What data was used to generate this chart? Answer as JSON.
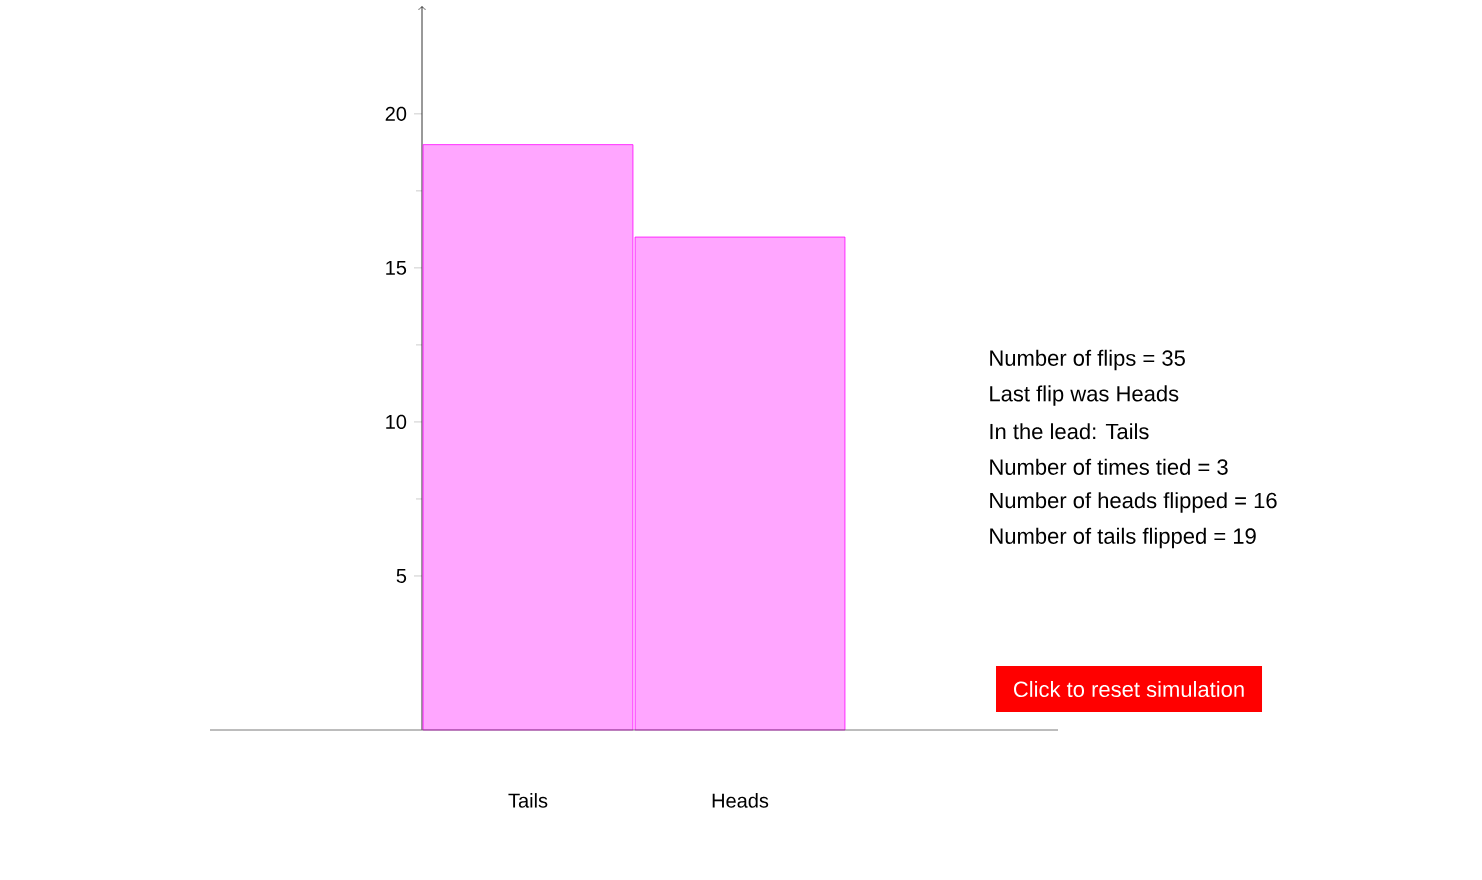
{
  "chart_data": {
    "type": "bar",
    "categories": [
      "Tails",
      "Heads"
    ],
    "values": [
      19,
      16
    ],
    "color": "#ffa6ff",
    "ylim": [
      0,
      23.5
    ],
    "yticks": [
      5,
      10,
      15,
      20
    ],
    "annotations": [
      "Number of flips = 35",
      "Last flip was Heads",
      "In the lead: Tails",
      "Number of times tied = 3",
      "Number of heads flipped = 16",
      "Number of tails flipped = 19",
      "Click to reset simulation"
    ]
  }
}
